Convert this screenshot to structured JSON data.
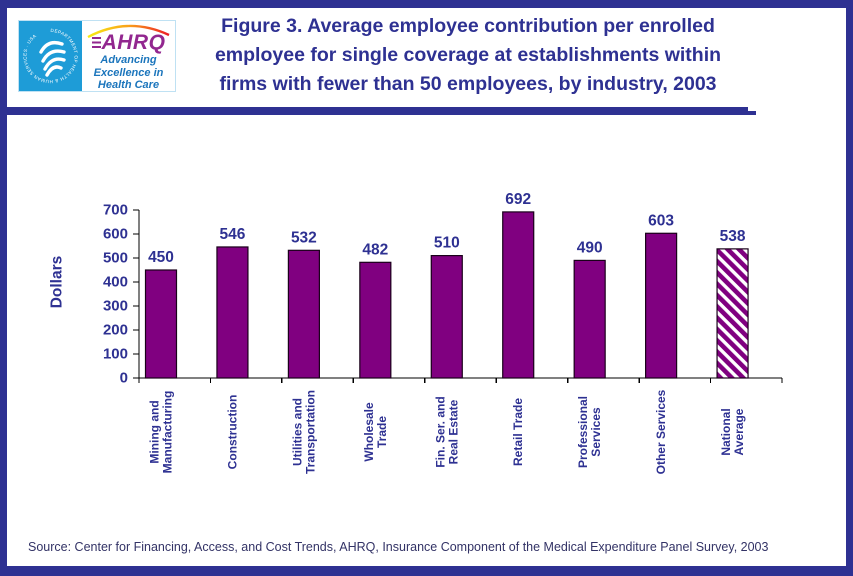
{
  "page": {
    "title": "Figure 3. Average employee contribution per enrolled\nemployee for single coverage at establishments within\nfirms with fewer than 50 employees, by industry, 2003",
    "source": "Source: Center for Financing, Access, and Cost Trends, AHRQ, Insurance Component of the Medical Expenditure Panel Survey, 2003"
  },
  "logo": {
    "hhs_seal_text": "DEPARTMENT OF HEALTH & HUMAN SERVICES · USA",
    "ahrq_acronym": "AHRQ",
    "ahrq_tagline": "Advancing\nExcellence in\nHealth Care"
  },
  "colors": {
    "navy": "#2e3192",
    "bar_purple": "#800080",
    "bar_outline": "#1a001a",
    "axis_black": "#000000",
    "logo_blue": "#1e9cd7",
    "ahrq_purple": "#92278f",
    "tagline_blue": "#1b75bc",
    "arc_yellow": "#f7ec13",
    "arc_orange": "#f9a11b",
    "arc_red": "#ed1c24",
    "source_text": "#333366"
  },
  "chart_data": {
    "type": "bar",
    "title": "",
    "xlabel": "",
    "ylabel": "Dollars",
    "ylim": [
      0,
      700
    ],
    "yticks": [
      0,
      100,
      200,
      300,
      400,
      500,
      600,
      700
    ],
    "grid": false,
    "legend": "none",
    "categories": [
      "Mining and\nManufacturing",
      "Construction",
      "Utilities and\nTransportation",
      "Wholesale\nTrade",
      "Fin. Ser. and\nReal Estate",
      "Retail Trade",
      "Professional\nServices",
      "Other Services",
      "National\nAverage"
    ],
    "values": [
      450,
      546,
      532,
      482,
      510,
      692,
      490,
      603,
      538
    ],
    "value_labels": [
      "450",
      "546",
      "532",
      "482",
      "510",
      "692",
      "490",
      "603",
      "538"
    ],
    "hatched_category_index": 8,
    "bar_style_note": "solid purple bars; National Average bar white with purple diagonal hatch"
  }
}
